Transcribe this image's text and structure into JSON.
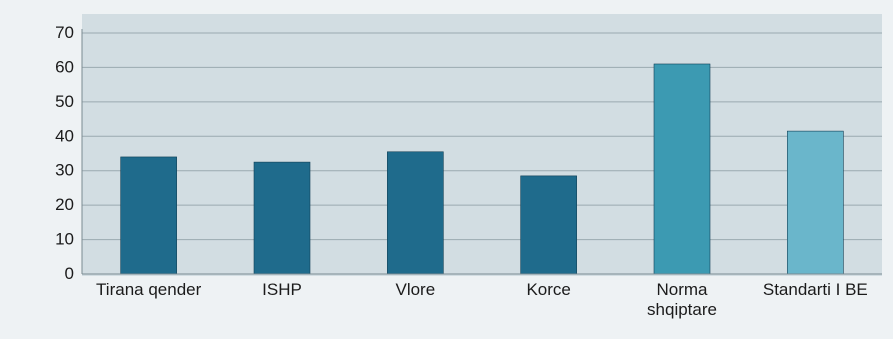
{
  "chart_data": {
    "type": "bar",
    "title": "",
    "xlabel": "",
    "ylabel": "",
    "ylim": [
      0,
      70
    ],
    "yticks": [
      0,
      10,
      20,
      30,
      40,
      50,
      60,
      70
    ],
    "grid": true,
    "legend": "none",
    "categories": [
      [
        "Tirana qender"
      ],
      [
        "ISHP"
      ],
      [
        "Vlore"
      ],
      [
        "Korce"
      ],
      [
        "Norma",
        "shqiptare"
      ],
      [
        "Standarti I BE"
      ]
    ],
    "values": [
      34,
      32.5,
      35.5,
      28.5,
      61,
      41.5
    ],
    "colors": [
      "#1f6b8c",
      "#1f6b8c",
      "#1f6b8c",
      "#1f6b8c",
      "#3c9ab2",
      "#6ab6cb"
    ]
  }
}
